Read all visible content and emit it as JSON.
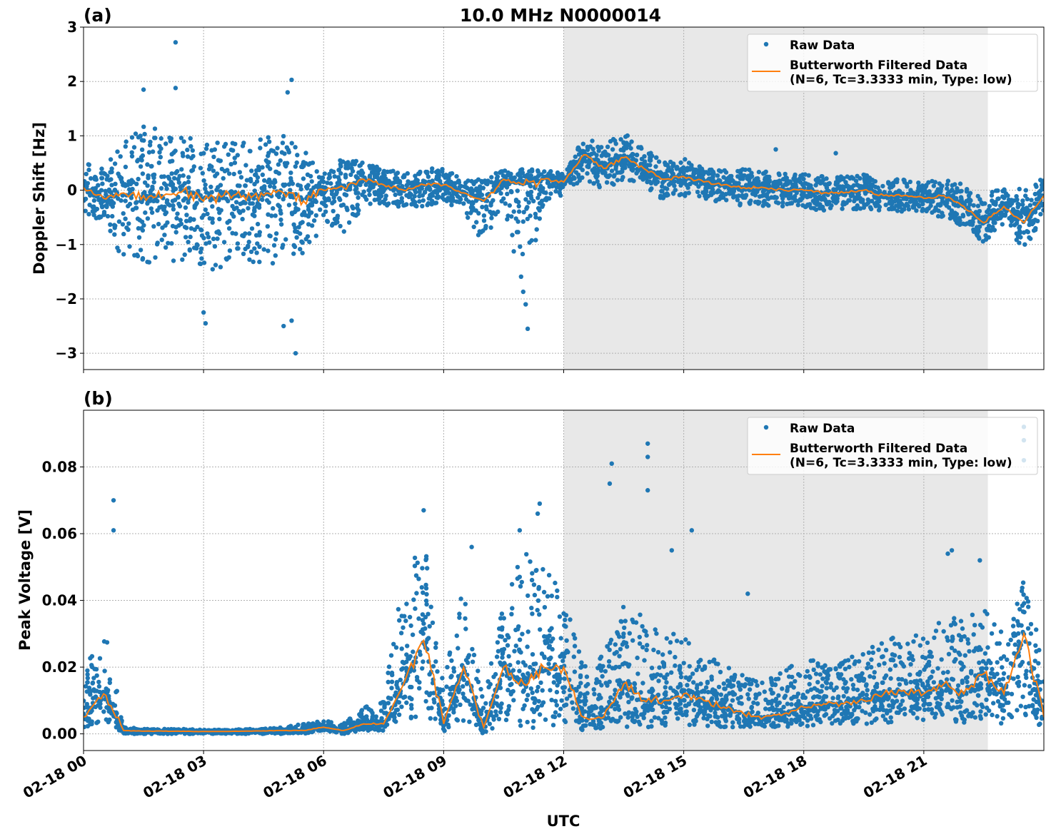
{
  "title": "10.0 MHz N0000014",
  "colors": {
    "raw": "#1f77b4",
    "filtered": "#ff7f0e",
    "shade": "#e8e8e8"
  },
  "chart_data": [
    {
      "type": "scatter",
      "panel_label": "(a)",
      "ylabel": "Doppler Shift [Hz]",
      "xlabel": "",
      "xlim": [
        0,
        24
      ],
      "ylim": [
        -3.3,
        3.0
      ],
      "yticks": [
        3,
        2,
        1,
        0,
        -1,
        -2,
        -3
      ],
      "ytick_labels": [
        "3",
        "2",
        "1",
        "0",
        "−1",
        "−2",
        "−3"
      ],
      "grid": true,
      "shaded_region": [
        12.0,
        22.6
      ],
      "legend": {
        "placement": "top-right",
        "entries": [
          "Raw Data",
          "Butterworth Filtered Data",
          "(N=6, Tc=3.3333 min, Type: low)"
        ]
      },
      "x": [
        0,
        0.5,
        1,
        1.5,
        2,
        2.5,
        3,
        3.5,
        4,
        4.5,
        5,
        5.5,
        6,
        6.5,
        7,
        7.5,
        8,
        8.5,
        9,
        9.5,
        10,
        10.5,
        11,
        11.5,
        12,
        12.5,
        13,
        13.5,
        14,
        14.5,
        15,
        15.5,
        16,
        16.5,
        17,
        17.5,
        18,
        18.5,
        19,
        19.5,
        20,
        20.5,
        21,
        21.5,
        22,
        22.5,
        23,
        23.5,
        24
      ],
      "series": [
        {
          "name": "Butterworth Filtered Data",
          "values": [
            0.05,
            -0.15,
            -0.05,
            -0.1,
            -0.1,
            0.0,
            -0.2,
            -0.1,
            -0.1,
            -0.1,
            -0.05,
            -0.2,
            0.0,
            0.05,
            0.2,
            0.1,
            0.0,
            0.1,
            0.1,
            -0.05,
            -0.2,
            0.2,
            0.1,
            0.2,
            0.15,
            0.65,
            0.4,
            0.6,
            0.4,
            0.2,
            0.25,
            0.15,
            0.1,
            0.05,
            0.05,
            0.0,
            0.0,
            -0.05,
            -0.05,
            0.0,
            -0.1,
            -0.1,
            -0.15,
            -0.1,
            -0.3,
            -0.6,
            -0.3,
            -0.6,
            -0.1
          ]
        },
        {
          "name": "Raw Data",
          "lower": [
            -0.4,
            -0.6,
            -1.3,
            -1.4,
            -1.3,
            -1.3,
            -1.5,
            -1.4,
            -1.3,
            -1.4,
            -1.3,
            -1.3,
            -0.6,
            -0.8,
            -0.3,
            -0.3,
            -0.3,
            -0.3,
            -0.2,
            -0.4,
            -1.0,
            -0.2,
            -2.2,
            -0.2,
            -0.1,
            0.2,
            0.0,
            0.2,
            0.1,
            -0.2,
            -0.1,
            -0.2,
            -0.2,
            -0.3,
            -0.3,
            -0.3,
            -0.3,
            -0.4,
            -0.35,
            -0.35,
            -0.4,
            -0.4,
            -0.45,
            -0.5,
            -0.7,
            -1.0,
            -0.6,
            -1.1,
            -0.5
          ],
          "upper": [
            0.5,
            0.4,
            0.9,
            1.2,
            1.1,
            1.0,
            0.9,
            0.9,
            0.9,
            1.0,
            1.0,
            0.8,
            0.3,
            0.6,
            0.5,
            0.4,
            0.3,
            0.4,
            0.4,
            0.2,
            0.2,
            0.4,
            0.4,
            0.4,
            0.3,
            1.0,
            0.8,
            1.1,
            0.8,
            0.5,
            0.6,
            0.4,
            0.4,
            0.4,
            0.35,
            0.3,
            0.3,
            0.25,
            0.25,
            0.3,
            0.2,
            0.2,
            0.15,
            0.2,
            0.1,
            -0.1,
            0.1,
            0.0,
            0.3
          ],
          "outliers": [
            [
              2.3,
              2.72
            ],
            [
              2.3,
              1.88
            ],
            [
              1.5,
              1.85
            ],
            [
              5.2,
              2.03
            ],
            [
              5.1,
              1.8
            ],
            [
              5.3,
              -3.0
            ],
            [
              5.2,
              -2.4
            ],
            [
              11.1,
              -2.55
            ],
            [
              11.05,
              -2.1
            ],
            [
              3.05,
              -2.45
            ],
            [
              3.0,
              -2.25
            ],
            [
              5.0,
              -2.5
            ],
            [
              17.3,
              0.75
            ],
            [
              18.8,
              0.68
            ]
          ]
        }
      ]
    },
    {
      "type": "scatter",
      "panel_label": "(b)",
      "ylabel": "Peak Voltage [V]",
      "xlabel": "UTC",
      "xlim": [
        0,
        24
      ],
      "ylim": [
        -0.005,
        0.097
      ],
      "yticks": [
        0.0,
        0.02,
        0.04,
        0.06,
        0.08
      ],
      "ytick_labels": [
        "0.00",
        "0.02",
        "0.04",
        "0.06",
        "0.08"
      ],
      "xticks": [
        0,
        3,
        6,
        9,
        12,
        15,
        18,
        21
      ],
      "xtick_labels": [
        "02-18 00",
        "02-18 03",
        "02-18 06",
        "02-18 09",
        "02-18 12",
        "02-18 15",
        "02-18 18",
        "02-18 21"
      ],
      "grid": true,
      "shaded_region": [
        12.0,
        22.6
      ],
      "legend": {
        "placement": "top-right",
        "entries": [
          "Raw Data",
          "Butterworth Filtered Data",
          "(N=6, Tc=3.3333 min, Type: low)"
        ]
      },
      "x": [
        0,
        0.5,
        1,
        1.5,
        2,
        2.5,
        3,
        3.5,
        4,
        4.5,
        5,
        5.5,
        6,
        6.5,
        7,
        7.5,
        8,
        8.5,
        9,
        9.5,
        10,
        10.5,
        11,
        11.5,
        12,
        12.5,
        13,
        13.5,
        14,
        14.5,
        15,
        15.5,
        16,
        16.5,
        17,
        17.5,
        18,
        18.5,
        19,
        19.5,
        20,
        20.5,
        21,
        21.5,
        22,
        22.5,
        23,
        23.5,
        24
      ],
      "series": [
        {
          "name": "Butterworth Filtered Data",
          "values": [
            0.005,
            0.012,
            0.001,
            0.0008,
            0.0008,
            0.0008,
            0.0007,
            0.0007,
            0.0008,
            0.0009,
            0.001,
            0.001,
            0.002,
            0.001,
            0.003,
            0.003,
            0.015,
            0.028,
            0.003,
            0.02,
            0.002,
            0.02,
            0.015,
            0.02,
            0.02,
            0.005,
            0.005,
            0.015,
            0.01,
            0.01,
            0.012,
            0.01,
            0.008,
            0.006,
            0.005,
            0.006,
            0.008,
            0.009,
            0.009,
            0.01,
            0.012,
            0.013,
            0.012,
            0.015,
            0.012,
            0.018,
            0.012,
            0.03,
            0.005
          ]
        },
        {
          "name": "Raw Data",
          "lower": [
            0.002,
            0.003,
            0.0,
            0.0,
            0.0,
            0.0,
            0.0,
            0.0,
            0.0,
            0.0,
            0.0,
            0.0,
            0.001,
            0.0,
            0.001,
            0.001,
            0.003,
            0.005,
            0.0,
            0.004,
            0.0,
            0.003,
            0.0,
            0.002,
            0.003,
            0.001,
            0.001,
            0.002,
            0.002,
            0.002,
            0.003,
            0.002,
            0.002,
            0.002,
            0.002,
            0.002,
            0.002,
            0.003,
            0.003,
            0.003,
            0.003,
            0.004,
            0.004,
            0.004,
            0.003,
            0.004,
            0.003,
            0.004,
            0.002
          ],
          "upper": [
            0.018,
            0.035,
            0.002,
            0.0015,
            0.0015,
            0.0015,
            0.0012,
            0.0012,
            0.0015,
            0.0015,
            0.002,
            0.003,
            0.004,
            0.003,
            0.008,
            0.01,
            0.05,
            0.06,
            0.015,
            0.045,
            0.01,
            0.04,
            0.055,
            0.05,
            0.045,
            0.02,
            0.025,
            0.04,
            0.035,
            0.03,
            0.03,
            0.025,
            0.02,
            0.02,
            0.015,
            0.02,
            0.022,
            0.022,
            0.022,
            0.025,
            0.028,
            0.03,
            0.03,
            0.035,
            0.035,
            0.04,
            0.03,
            0.05,
            0.02
          ],
          "outliers": [
            [
              0.75,
              0.07
            ],
            [
              0.75,
              0.061
            ],
            [
              13.2,
              0.081
            ],
            [
              13.15,
              0.075
            ],
            [
              14.1,
              0.087
            ],
            [
              14.1,
              0.083
            ],
            [
              14.1,
              0.073
            ],
            [
              15.2,
              0.061
            ],
            [
              11.4,
              0.069
            ],
            [
              11.35,
              0.066
            ],
            [
              9.7,
              0.056
            ],
            [
              8.5,
              0.067
            ],
            [
              23.5,
              0.092
            ],
            [
              23.5,
              0.088
            ],
            [
              23.5,
              0.082
            ],
            [
              16.6,
              0.042
            ],
            [
              21.7,
              0.055
            ],
            [
              21.6,
              0.054
            ],
            [
              22.4,
              0.052
            ],
            [
              10.9,
              0.061
            ],
            [
              14.7,
              0.055
            ]
          ]
        }
      ]
    }
  ]
}
